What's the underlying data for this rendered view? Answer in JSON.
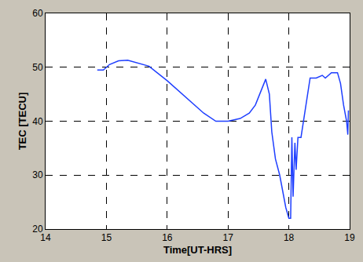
{
  "chart_data": {
    "type": "line",
    "x_label": "Time[UT-HRS]",
    "y_label": "TEC [TECU]",
    "x": [
      14.85,
      14.95,
      15.05,
      15.2,
      15.35,
      15.5,
      15.7,
      16.0,
      16.3,
      16.6,
      16.8,
      17.0,
      17.2,
      17.35,
      17.45,
      17.55,
      17.62,
      17.68,
      17.72,
      17.78,
      17.85,
      17.95,
      18.0,
      18.03,
      18.05,
      18.07,
      18.1,
      18.12,
      18.15,
      18.2,
      18.28,
      18.35,
      18.45,
      18.55,
      18.6,
      18.7,
      18.8,
      18.85,
      18.9,
      18.95,
      18.97,
      18.98
    ],
    "values": [
      49.5,
      49.5,
      50.5,
      51.2,
      51.3,
      50.8,
      50.2,
      47.5,
      44.5,
      41.5,
      40,
      40,
      40.5,
      41.5,
      43,
      46,
      47.8,
      45,
      38,
      33,
      30,
      24,
      22,
      22,
      37,
      26,
      36,
      31,
      37,
      37,
      43,
      48,
      48,
      48.5,
      48,
      49,
      49,
      47,
      43,
      40,
      37.5,
      42
    ],
    "color": "#1f3fff",
    "line_style": "solid",
    "xlim": [
      14,
      19
    ],
    "xticks": [
      14,
      15,
      16,
      17,
      18,
      19
    ],
    "ylim": [
      20,
      60
    ],
    "yticks": [
      20,
      30,
      40,
      50,
      60
    ],
    "grid": true
  }
}
